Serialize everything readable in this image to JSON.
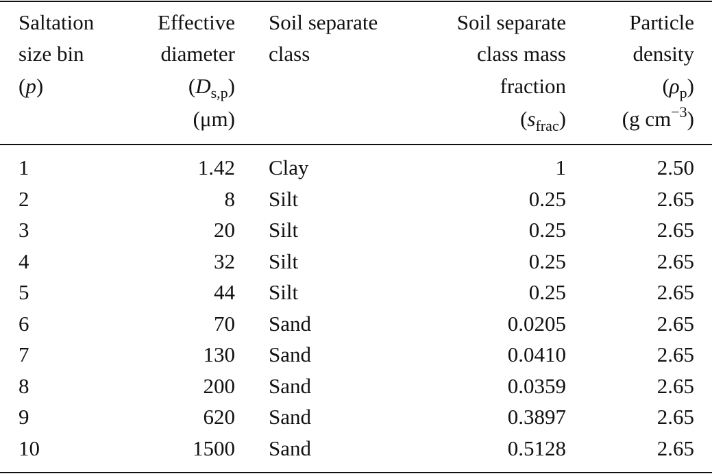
{
  "table": {
    "columns": [
      {
        "align": "left",
        "lines": [
          [
            "Saltation"
          ],
          [
            "size bin"
          ],
          [
            "(",
            {
              "text": "p",
              "style": "it"
            },
            ")"
          ]
        ]
      },
      {
        "align": "right",
        "lines": [
          [
            "Effective"
          ],
          [
            "diameter"
          ],
          [
            "(",
            {
              "text": "D",
              "style": "it"
            },
            {
              "text": "s,p",
              "style": "sub"
            },
            ")"
          ],
          [
            "(μm)"
          ]
        ]
      },
      {
        "align": "left",
        "lines": [
          [
            "Soil separate"
          ],
          [
            "class"
          ]
        ]
      },
      {
        "align": "right",
        "lines": [
          [
            "Soil separate"
          ],
          [
            "class mass"
          ],
          [
            "fraction"
          ],
          [
            "(",
            {
              "text": "s",
              "style": "it"
            },
            {
              "text": "frac",
              "style": "sub"
            },
            ")"
          ]
        ]
      },
      {
        "align": "right",
        "lines": [
          [
            "Particle"
          ],
          [
            "density"
          ],
          [
            "(",
            {
              "text": "ρ",
              "style": "it"
            },
            {
              "text": "p",
              "style": "sub"
            },
            ")"
          ],
          [
            "(g cm",
            {
              "text": "−3",
              "style": "sup"
            },
            ")"
          ]
        ]
      }
    ],
    "rows": [
      [
        "1",
        "1.42",
        "Clay",
        "1",
        "2.50"
      ],
      [
        "2",
        "8",
        "Silt",
        "0.25",
        "2.65"
      ],
      [
        "3",
        "20",
        "Silt",
        "0.25",
        "2.65"
      ],
      [
        "4",
        "32",
        "Silt",
        "0.25",
        "2.65"
      ],
      [
        "5",
        "44",
        "Silt",
        "0.25",
        "2.65"
      ],
      [
        "6",
        "70",
        "Sand",
        "0.0205",
        "2.65"
      ],
      [
        "7",
        "130",
        "Sand",
        "0.0410",
        "2.65"
      ],
      [
        "8",
        "200",
        "Sand",
        "0.0359",
        "2.65"
      ],
      [
        "9",
        "620",
        "Sand",
        "0.3897",
        "2.65"
      ],
      [
        "10",
        "1500",
        "Sand",
        "0.5128",
        "2.65"
      ]
    ]
  }
}
